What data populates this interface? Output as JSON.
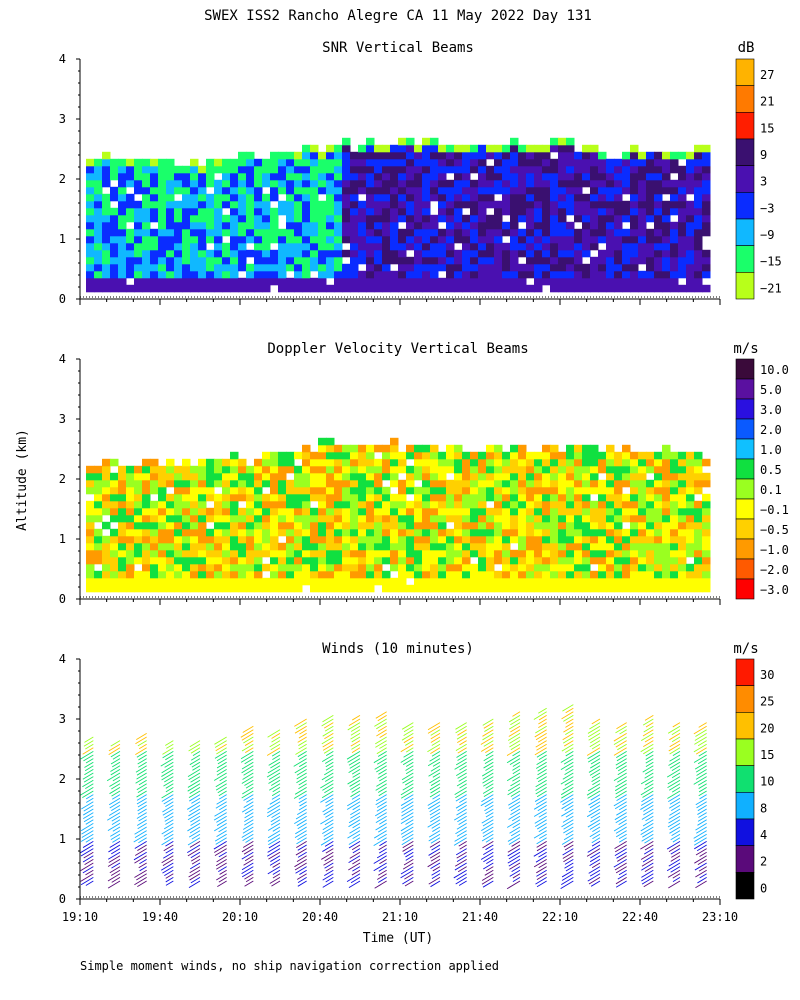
{
  "page": {
    "title": "SWEX ISS2 Rancho Alegre CA  11 May 2022 Day 131",
    "ylabel": "Altitude (km)",
    "xlabel": "Time (UT)",
    "footnote": "Simple moment winds, no ship navigation correction applied"
  },
  "chart_data": [
    {
      "type": "heatmap",
      "title": "SNR Vertical Beams",
      "unit": "dB",
      "xlabel": "Time (UT)",
      "ylabel": "Altitude (km)",
      "x_ticks": [
        "19:10",
        "19:40",
        "20:10",
        "20:40",
        "21:10",
        "21:40",
        "22:10",
        "22:40",
        "23:10"
      ],
      "x_range_hours": [
        19.1667,
        23.1667
      ],
      "y_ticks": [
        0,
        1,
        2,
        3,
        4
      ],
      "ylim": [
        0,
        4
      ],
      "data_top_km": {
        "times": [
          "19:10",
          "19:40",
          "20:10",
          "20:40",
          "21:10",
          "21:40",
          "22:10",
          "22:40",
          "23:10"
        ],
        "tops": [
          2.35,
          2.2,
          2.3,
          2.5,
          2.6,
          2.5,
          2.55,
          2.4,
          2.45
        ]
      },
      "color_levels": [
        {
          "label": "27",
          "color": "#ffb300"
        },
        {
          "label": "21",
          "color": "#ff7a00"
        },
        {
          "label": "15",
          "color": "#ff1e00"
        },
        {
          "label": "9",
          "color": "#3a1070"
        },
        {
          "label": "3",
          "color": "#4a10b0"
        },
        {
          "label": "−3",
          "color": "#0a2cff"
        },
        {
          "label": "−9",
          "color": "#10b8ff"
        },
        {
          "label": "−15",
          "color": "#1aff6a"
        },
        {
          "label": "−21",
          "color": "#b8ff1a"
        }
      ],
      "bottom_color": "#ccff1a"
    },
    {
      "type": "heatmap",
      "title": "Doppler Velocity Vertical Beams",
      "unit": "m/s",
      "xlabel": "Time (UT)",
      "ylabel": "Altitude (km)",
      "x_ticks": [
        "19:10",
        "19:40",
        "20:10",
        "20:40",
        "21:10",
        "21:40",
        "22:10",
        "22:40",
        "23:10"
      ],
      "x_range_hours": [
        19.1667,
        23.1667
      ],
      "y_ticks": [
        0,
        1,
        2,
        3,
        4
      ],
      "ylim": [
        0,
        4
      ],
      "data_top_km": {
        "times": [
          "19:10",
          "19:40",
          "20:10",
          "20:40",
          "21:10",
          "21:40",
          "22:10",
          "22:40",
          "23:10"
        ],
        "tops": [
          2.2,
          2.25,
          2.3,
          2.55,
          2.5,
          2.5,
          2.45,
          2.4,
          2.45
        ]
      },
      "color_levels": [
        {
          "label": "10.0",
          "color": "#3a0a3a"
        },
        {
          "label": "5.0",
          "color": "#5a10a0"
        },
        {
          "label": "3.0",
          "color": "#2a10e0"
        },
        {
          "label": "2.0",
          "color": "#0a5aff"
        },
        {
          "label": "1.0",
          "color": "#10c0ff"
        },
        {
          "label": "0.5",
          "color": "#10e040"
        },
        {
          "label": "0.1",
          "color": "#9aff20"
        },
        {
          "label": "−0.1",
          "color": "#ffff00"
        },
        {
          "label": "−0.5",
          "color": "#ffd000"
        },
        {
          "label": "−1.0",
          "color": "#ff9a00"
        },
        {
          "label": "−2.0",
          "color": "#ff5a00"
        },
        {
          "label": "−3.0",
          "color": "#ff0000"
        }
      ]
    },
    {
      "type": "wind_barbs",
      "title": "Winds (10 minutes)",
      "unit": "m/s",
      "xlabel": "Time (UT)",
      "ylabel": "Altitude (km)",
      "x_ticks": [
        "19:10",
        "19:40",
        "20:10",
        "20:40",
        "21:10",
        "21:40",
        "22:10",
        "22:40",
        "23:10"
      ],
      "x_range_hours": [
        19.1667,
        23.1667
      ],
      "y_ticks": [
        0,
        1,
        2,
        3,
        4
      ],
      "ylim": [
        0,
        4
      ],
      "profile_times": [
        "19:15",
        "19:25",
        "19:35",
        "19:45",
        "19:55",
        "20:05",
        "20:15",
        "20:25",
        "20:35",
        "20:45",
        "20:55",
        "21:05",
        "21:15",
        "21:25",
        "21:35",
        "21:45",
        "21:55",
        "22:05",
        "22:15",
        "22:25",
        "22:35",
        "22:45",
        "22:55",
        "23:05"
      ],
      "profile_tops_km": [
        2.75,
        2.7,
        2.8,
        2.7,
        2.65,
        2.75,
        2.9,
        2.85,
        3.05,
        3.1,
        3.1,
        3.15,
        3.0,
        2.95,
        3.0,
        3.05,
        3.15,
        3.2,
        3.25,
        3.05,
        3.0,
        3.1,
        3.0,
        2.95
      ],
      "color_levels": [
        {
          "label": "30",
          "color": "#ff1a00"
        },
        {
          "label": "25",
          "color": "#ff8c00"
        },
        {
          "label": "20",
          "color": "#ffc000"
        },
        {
          "label": "15",
          "color": "#9aff20"
        },
        {
          "label": "10",
          "color": "#10e070"
        },
        {
          "label": "8",
          "color": "#10b0ff"
        },
        {
          "label": "4",
          "color": "#1010e0"
        },
        {
          "label": "2",
          "color": "#5a0a7a"
        },
        {
          "label": "0",
          "color": "#000000"
        }
      ]
    }
  ]
}
